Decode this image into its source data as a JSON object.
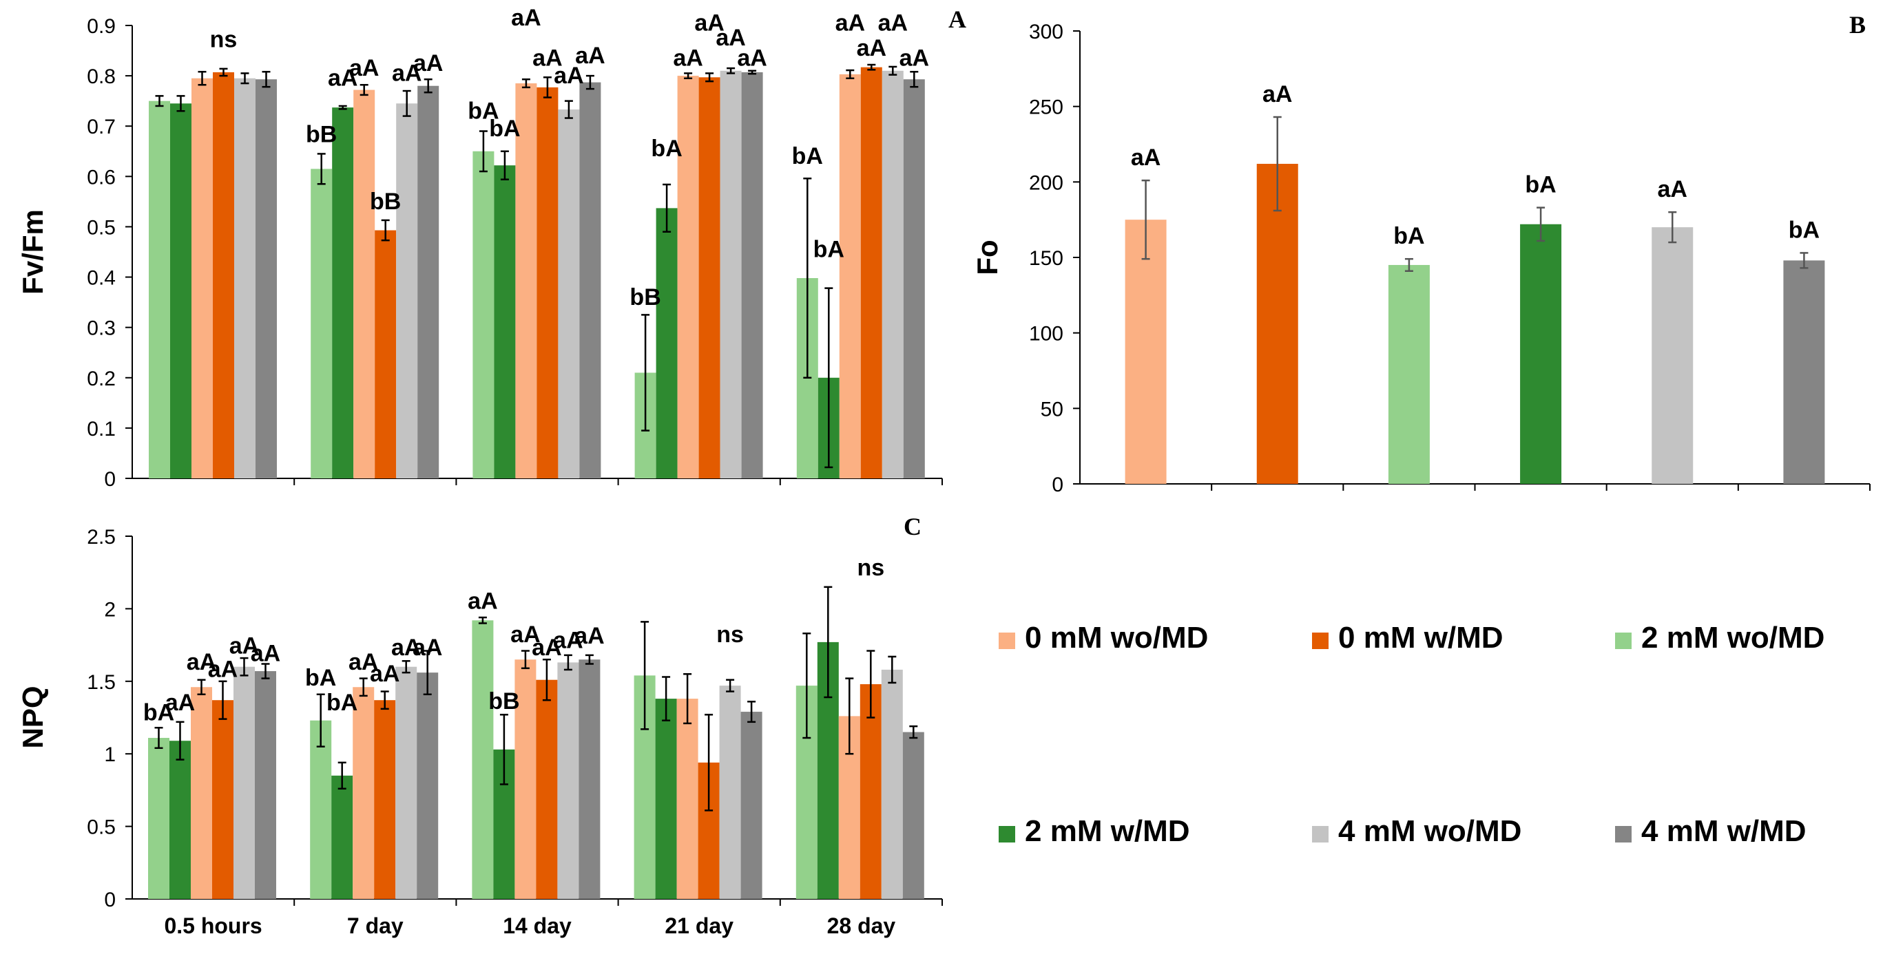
{
  "colors": {
    "0 mM wo/MD": "#fbb083",
    "0 mM w/MD": "#e35b00",
    "2 mM wo/MD": "#93d18b",
    "2 mM w/MD": "#2e8a30",
    "4 mM wo/MD": "#c3c3c3",
    "4 mM w/MD": "#858585"
  },
  "legend": {
    "items": [
      {
        "label": "0 mM wo/MD",
        "color": "#fbb083"
      },
      {
        "label": "0 mM w/MD",
        "color": "#e35b00"
      },
      {
        "label": "2 mM wo/MD",
        "color": "#93d18b"
      },
      {
        "label": "2 mM w/MD",
        "color": "#2e8a30"
      },
      {
        "label": "4 mM wo/MD",
        "color": "#c3c3c3"
      },
      {
        "label": "4 mM w/MD",
        "color": "#858585"
      }
    ]
  },
  "chart_data": [
    {
      "panel": "A",
      "type": "bar",
      "ylabel": "Fv/Fm",
      "ylim": [
        0,
        0.9
      ],
      "yticks": [
        "0",
        "0.1",
        "0.2",
        "0.3",
        "0.4",
        "0.5",
        "0.6",
        "0.7",
        "0.8",
        "0.9"
      ],
      "categories": [
        "0.5 hours",
        "7 day",
        "14 day",
        "21 day",
        "28 day"
      ],
      "show_category_labels": false,
      "series": [
        {
          "name": "2 mM wo/MD",
          "values": [
            0.75,
            0.615,
            0.65,
            0.21,
            0.398
          ],
          "errors": [
            0.01,
            0.03,
            0.04,
            0.115,
            0.198
          ]
        },
        {
          "name": "2 mM w/MD",
          "values": [
            0.745,
            0.737,
            0.622,
            0.537,
            0.2
          ],
          "errors": [
            0.015,
            0.003,
            0.028,
            0.047,
            0.178
          ]
        },
        {
          "name": "0 mM wo/MD",
          "values": [
            0.795,
            0.772,
            0.785,
            0.8,
            0.803
          ],
          "errors": [
            0.013,
            0.01,
            0.008,
            0.005,
            0.008
          ]
        },
        {
          "name": "0 mM w/MD",
          "values": [
            0.807,
            0.493,
            0.777,
            0.797,
            0.817
          ],
          "errors": [
            0.007,
            0.02,
            0.02,
            0.008,
            0.005
          ]
        },
        {
          "name": "4 mM wo/MD",
          "values": [
            0.795,
            0.745,
            0.733,
            0.81,
            0.81
          ],
          "errors": [
            0.01,
            0.025,
            0.017,
            0.005,
            0.008
          ]
        },
        {
          "name": "4 mM w/MD",
          "values": [
            0.793,
            0.78,
            0.787,
            0.807,
            0.793
          ],
          "errors": [
            0.015,
            0.013,
            0.013,
            0.003,
            0.015
          ]
        }
      ],
      "annotations": [
        {
          "text": "ns",
          "category": 0,
          "series": 3,
          "y": 0.857
        },
        {
          "text": "bB",
          "category": 1,
          "series": 0,
          "y": 0.668
        },
        {
          "text": "aA",
          "category": 1,
          "series": 1,
          "y": 0.78
        },
        {
          "text": "aA",
          "category": 1,
          "series": 2,
          "y": 0.8
        },
        {
          "text": "bB",
          "category": 1,
          "series": 3,
          "y": 0.535
        },
        {
          "text": "aA",
          "category": 1,
          "series": 4,
          "y": 0.79
        },
        {
          "text": "aA",
          "category": 1,
          "series": 5,
          "y": 0.81
        },
        {
          "text": "bA",
          "category": 2,
          "series": 0,
          "y": 0.715
        },
        {
          "text": "bA",
          "category": 2,
          "series": 1,
          "y": 0.68
        },
        {
          "text": "aA",
          "category": 2,
          "series": 2,
          "y": 0.9
        },
        {
          "text": "aA",
          "category": 2,
          "series": 3,
          "y": 0.82
        },
        {
          "text": "aA",
          "category": 2,
          "series": 4,
          "y": 0.785
        },
        {
          "text": "aA",
          "category": 2,
          "series": 5,
          "y": 0.825
        },
        {
          "text": "bB",
          "category": 3,
          "series": 0,
          "y": 0.345
        },
        {
          "text": "bA",
          "category": 3,
          "series": 1,
          "y": 0.64
        },
        {
          "text": "aA",
          "category": 3,
          "series": 2,
          "y": 0.82
        },
        {
          "text": "aA",
          "category": 3,
          "series": 3,
          "y": 0.89
        },
        {
          "text": "aA",
          "category": 3,
          "series": 4,
          "y": 0.86
        },
        {
          "text": "aA",
          "category": 3,
          "series": 5,
          "y": 0.82
        },
        {
          "text": "bA",
          "category": 4,
          "series": 0,
          "y": 0.625
        },
        {
          "text": "bA",
          "category": 4,
          "series": 1,
          "y": 0.44
        },
        {
          "text": "aA",
          "category": 4,
          "series": 2,
          "y": 0.89
        },
        {
          "text": "aA",
          "category": 4,
          "series": 3,
          "y": 0.84
        },
        {
          "text": "aA",
          "category": 4,
          "series": 4,
          "y": 0.89
        },
        {
          "text": "aA",
          "category": 4,
          "series": 5,
          "y": 0.82
        }
      ],
      "panel_label": "A"
    },
    {
      "panel": "B",
      "type": "bar",
      "ylabel": "Fo",
      "ylim": [
        0,
        300
      ],
      "yticks": [
        "0",
        "50",
        "100",
        "150",
        "200",
        "250",
        "300"
      ],
      "categories": [
        "0 mM wo/MD",
        "0 mM w/MD",
        "2 mM wo/MD",
        "2 mM w/MD",
        "4 mM wo/MD",
        "4 mM w/MD"
      ],
      "show_category_labels": false,
      "values": [
        175,
        212,
        145,
        172,
        170,
        148
      ],
      "errors": [
        26,
        31,
        4,
        11,
        10,
        5
      ],
      "labels": [
        "aA",
        "aA",
        "bA",
        "bA",
        "aA",
        "bA"
      ],
      "panel_label": "B"
    },
    {
      "panel": "C",
      "type": "bar",
      "ylabel": "NPQ",
      "ylim": [
        0,
        2.5
      ],
      "yticks": [
        "0",
        "0.5",
        "1",
        "1.5",
        "2",
        "2.5"
      ],
      "categories": [
        "0.5 hours",
        "7 day",
        "14 day",
        "21 day",
        "28 day"
      ],
      "show_category_labels": true,
      "series": [
        {
          "name": "2 mM wo/MD",
          "values": [
            1.11,
            1.23,
            1.92,
            1.54,
            1.47
          ],
          "errors": [
            0.07,
            0.18,
            0.02,
            0.37,
            0.36
          ]
        },
        {
          "name": "2 mM w/MD",
          "values": [
            1.09,
            0.85,
            1.03,
            1.38,
            1.77
          ],
          "errors": [
            0.13,
            0.09,
            0.24,
            0.15,
            0.38
          ]
        },
        {
          "name": "0 mM wo/MD",
          "values": [
            1.46,
            1.46,
            1.65,
            1.38,
            1.26
          ],
          "errors": [
            0.05,
            0.06,
            0.06,
            0.17,
            0.26
          ]
        },
        {
          "name": "0 mM w/MD",
          "values": [
            1.37,
            1.37,
            1.51,
            0.94,
            1.48
          ],
          "errors": [
            0.13,
            0.06,
            0.14,
            0.33,
            0.23
          ]
        },
        {
          "name": "4 mM wo/MD",
          "values": [
            1.6,
            1.6,
            1.63,
            1.47,
            1.58
          ],
          "errors": [
            0.06,
            0.04,
            0.05,
            0.04,
            0.09
          ]
        },
        {
          "name": "4 mM w/MD",
          "values": [
            1.57,
            1.56,
            1.65,
            1.29,
            1.15
          ],
          "errors": [
            0.05,
            0.15,
            0.03,
            0.07,
            0.04
          ]
        }
      ],
      "annotations": [
        {
          "text": "bA",
          "category": 0,
          "series": 0,
          "y": 1.23
        },
        {
          "text": "aA",
          "category": 0,
          "series": 1,
          "y": 1.3
        },
        {
          "text": "aA",
          "category": 0,
          "series": 2,
          "y": 1.58
        },
        {
          "text": "aA",
          "category": 0,
          "series": 3,
          "y": 1.53
        },
        {
          "text": "aA",
          "category": 0,
          "series": 4,
          "y": 1.69
        },
        {
          "text": "aA",
          "category": 0,
          "series": 5,
          "y": 1.64
        },
        {
          "text": "bA",
          "category": 1,
          "series": 0,
          "y": 1.47
        },
        {
          "text": "bA",
          "category": 1,
          "series": 1,
          "y": 1.3
        },
        {
          "text": "aA",
          "category": 1,
          "series": 2,
          "y": 1.58
        },
        {
          "text": "aA",
          "category": 1,
          "series": 3,
          "y": 1.5
        },
        {
          "text": "aA",
          "category": 1,
          "series": 4,
          "y": 1.68
        },
        {
          "text": "aA",
          "category": 1,
          "series": 5,
          "y": 1.68
        },
        {
          "text": "aA",
          "category": 2,
          "series": 0,
          "y": 2.0
        },
        {
          "text": "bB",
          "category": 2,
          "series": 1,
          "y": 1.31
        },
        {
          "text": "aA",
          "category": 2,
          "series": 2,
          "y": 1.77
        },
        {
          "text": "aA",
          "category": 2,
          "series": 3,
          "y": 1.68
        },
        {
          "text": "aA",
          "category": 2,
          "series": 4,
          "y": 1.73
        },
        {
          "text": "aA",
          "category": 2,
          "series": 5,
          "y": 1.76
        },
        {
          "text": "ns",
          "category": 3,
          "series": 4,
          "y": 1.77
        },
        {
          "text": "ns",
          "category": 4,
          "series": 3,
          "y": 2.23
        }
      ],
      "panel_label": "C"
    }
  ]
}
